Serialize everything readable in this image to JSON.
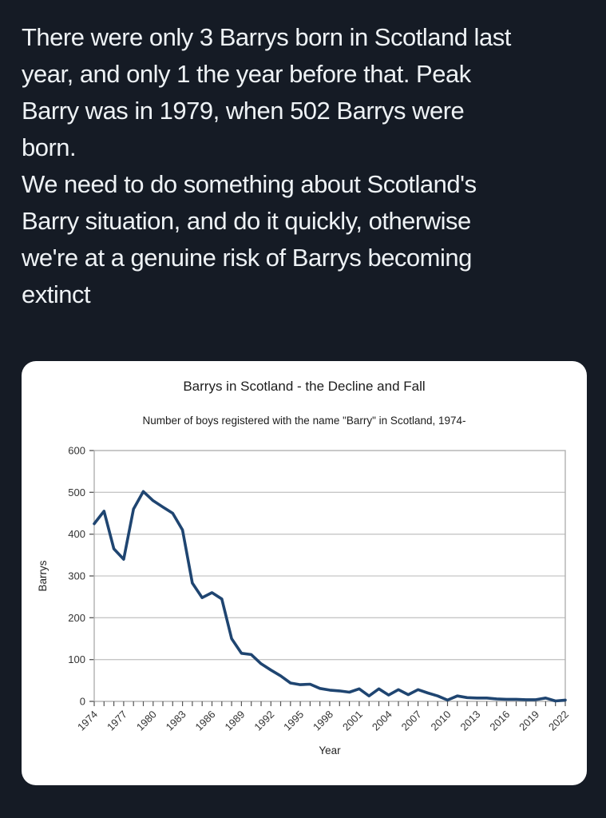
{
  "colors": {
    "page_bg": "#151b25",
    "tweet_text": "#eef2f5",
    "card_bg": "#ffffff",
    "chart_text": "#1c1c1c",
    "grid": "#c6c6c6",
    "frame": "#b0b0b0",
    "tick": "#555555"
  },
  "tweet": {
    "text": "There were only 3 Barrys born in Scotland last\nyear, and only 1 the year before that. Peak\nBarry was in 1979, when 502 Barrys were\nborn.\nWe need to do something about Scotland's\nBarry situation, and do it quickly, otherwise\nwe're at a genuine risk of Barrys becoming\nextinct"
  },
  "chart_data": {
    "type": "line",
    "title": "Barrys in Scotland - the Decline and Fall",
    "subtitle": "Number of boys registered with the name \"Barry\" in Scotland, 1974-",
    "xlabel": "Year",
    "ylabel": "Barrys",
    "ylim": [
      0,
      600
    ],
    "y_ticks": [
      0,
      100,
      200,
      300,
      400,
      500,
      600
    ],
    "x_tick_labels": [
      1974,
      1977,
      1980,
      1983,
      1986,
      1989,
      1992,
      1995,
      1998,
      2001,
      2004,
      2007,
      2010,
      2013,
      2016,
      2019,
      2022
    ],
    "grid": true,
    "legend": "none",
    "line_color": "#1f4571",
    "x": [
      1974,
      1975,
      1976,
      1977,
      1978,
      1979,
      1980,
      1981,
      1982,
      1983,
      1984,
      1985,
      1986,
      1987,
      1988,
      1989,
      1990,
      1991,
      1992,
      1993,
      1994,
      1995,
      1996,
      1997,
      1998,
      1999,
      2000,
      2001,
      2002,
      2003,
      2004,
      2005,
      2006,
      2007,
      2008,
      2009,
      2010,
      2011,
      2012,
      2013,
      2014,
      2015,
      2016,
      2017,
      2018,
      2019,
      2020,
      2021,
      2022
    ],
    "values": [
      425,
      455,
      365,
      340,
      460,
      502,
      480,
      465,
      450,
      410,
      283,
      248,
      260,
      245,
      150,
      115,
      112,
      90,
      75,
      61,
      44,
      40,
      41,
      31,
      27,
      25,
      22,
      30,
      13,
      30,
      15,
      28,
      16,
      28,
      20,
      13,
      3,
      13,
      9,
      8,
      8,
      6,
      5,
      5,
      4,
      4,
      8,
      1,
      3
    ]
  }
}
